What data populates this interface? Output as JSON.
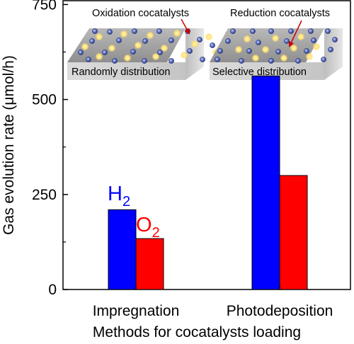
{
  "chart_data": {
    "type": "bar",
    "categories": [
      "Impregnation",
      "Photodeposition"
    ],
    "series": [
      {
        "name": "H2",
        "label_main": "H",
        "label_sub": "2",
        "color": "#0000ff",
        "values": [
          210,
          562
        ]
      },
      {
        "name": "O2",
        "label_main": "O",
        "label_sub": "2",
        "color": "#ff0000",
        "values": [
          134,
          300
        ]
      }
    ],
    "ylabel": "Gas evolution rate (μmol/h)",
    "xlabel": "Methods for cocatalysts loading",
    "ylim": [
      0,
      760
    ],
    "yticks": [
      0,
      250,
      500,
      750
    ],
    "grid": false,
    "insets": [
      {
        "caption": "Randomly distribution",
        "annotation": "Oxidation cocatalysts"
      },
      {
        "caption": "Selective distribution",
        "annotation": "Reduction cocatalysts"
      }
    ],
    "colors": {
      "oxidation_particle": "#ffd84a",
      "reduction_particle": "#5a6fc0",
      "slab_top": "#9a9a9a",
      "arrow": "#cc0000"
    }
  }
}
